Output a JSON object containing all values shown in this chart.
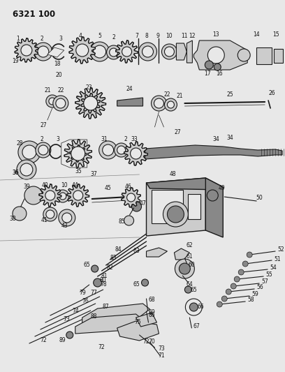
{
  "title": "6321 100",
  "bg_color": "#e8e8e8",
  "fig_width": 4.08,
  "fig_height": 5.33,
  "dpi": 100,
  "line_color": "#1a1a1a",
  "text_color": "#111111",
  "gray1": "#888888",
  "gray2": "#cccccc",
  "gray3": "#555555",
  "lw_main": 0.8,
  "lw_thin": 0.5,
  "fs_label": 5.5,
  "fs_title": 8.5
}
